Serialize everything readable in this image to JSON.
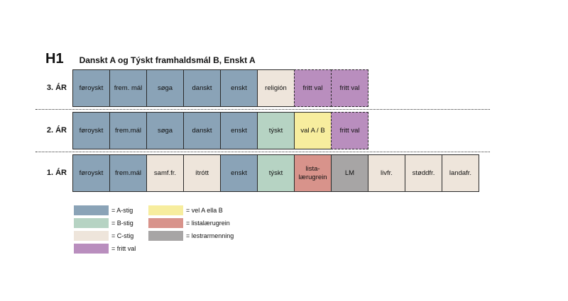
{
  "heading": {
    "code": "H1",
    "title": "Danskt A og Týskt framhaldsmál B, Enskt A"
  },
  "colors": {
    "A": "#8aa3b7",
    "B": "#b6d3c3",
    "C": "#eee5db",
    "fritt": "#b98ebe",
    "velAB": "#f7ed9e",
    "lista": "#d8938b",
    "lesta": "#a7a5a5"
  },
  "years": [
    {
      "label": "3. ÁR",
      "cells": [
        {
          "text": "føroyskt",
          "type": "A",
          "dashed": false
        },
        {
          "text": "frem. mál",
          "type": "A",
          "dashed": false
        },
        {
          "text": "søga",
          "type": "A",
          "dashed": false
        },
        {
          "text": "danskt",
          "type": "A",
          "dashed": false
        },
        {
          "text": "enskt",
          "type": "A",
          "dashed": false
        },
        {
          "text": "religión",
          "type": "C",
          "dashed": false
        },
        {
          "text": "fritt val",
          "type": "fritt",
          "dashed": true
        },
        {
          "text": "fritt val",
          "type": "fritt",
          "dashed": true
        }
      ]
    },
    {
      "label": "2. ÁR",
      "cells": [
        {
          "text": "føroyskt",
          "type": "A",
          "dashed": false
        },
        {
          "text": "frem.mál",
          "type": "A",
          "dashed": false
        },
        {
          "text": "søga",
          "type": "A",
          "dashed": false
        },
        {
          "text": "danskt",
          "type": "A",
          "dashed": false
        },
        {
          "text": "enskt",
          "type": "A",
          "dashed": false
        },
        {
          "text": "týskt",
          "type": "B",
          "dashed": false
        },
        {
          "text": "val A / B",
          "type": "velAB",
          "dashed": false
        },
        {
          "text": "fritt val",
          "type": "fritt",
          "dashed": true
        }
      ]
    },
    {
      "label": "1. ÁR",
      "cells": [
        {
          "text": "føroyskt",
          "type": "A",
          "dashed": false
        },
        {
          "text": "frem.mál",
          "type": "A",
          "dashed": false
        },
        {
          "text": "samf.fr.",
          "type": "C",
          "dashed": false
        },
        {
          "text": "ítrótt",
          "type": "C",
          "dashed": false
        },
        {
          "text": "enskt",
          "type": "A",
          "dashed": false
        },
        {
          "text": "týskt",
          "type": "B",
          "dashed": false
        },
        {
          "text": "lista- lærugrein",
          "type": "lista",
          "dashed": false
        },
        {
          "text": "LM",
          "type": "lesta",
          "dashed": false
        },
        {
          "text": "livfr.",
          "type": "C",
          "dashed": false
        },
        {
          "text": "støddfr.",
          "type": "C",
          "dashed": false
        },
        {
          "text": "landafr.",
          "type": "C",
          "dashed": false
        }
      ]
    }
  ],
  "legend": [
    {
      "type": "A",
      "label": "= A-stig"
    },
    {
      "type": "B",
      "label": "= B-stig"
    },
    {
      "type": "C",
      "label": "= C-stig"
    },
    {
      "type": "fritt",
      "label": "= fritt val"
    },
    {
      "type": "velAB",
      "label": "= vel A ella B"
    },
    {
      "type": "lista",
      "label": "= listalærugrein"
    },
    {
      "type": "lesta",
      "label": "= lestrarmenning"
    }
  ]
}
